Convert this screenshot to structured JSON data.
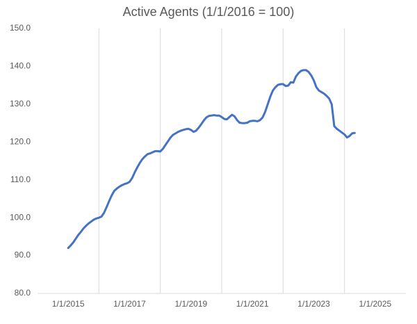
{
  "chart_data": {
    "type": "line",
    "title": "Active Agents (1/1/2016 = 100)",
    "x": [
      "1/1/2015",
      "2/1/2015",
      "3/1/2015",
      "4/1/2015",
      "5/1/2015",
      "6/1/2015",
      "7/1/2015",
      "8/1/2015",
      "9/1/2015",
      "10/1/2015",
      "11/1/2015",
      "12/1/2015",
      "1/1/2016",
      "2/1/2016",
      "3/1/2016",
      "4/1/2016",
      "5/1/2016",
      "6/1/2016",
      "7/1/2016",
      "8/1/2016",
      "9/1/2016",
      "10/1/2016",
      "11/1/2016",
      "12/1/2016",
      "1/1/2017",
      "2/1/2017",
      "3/1/2017",
      "4/1/2017",
      "5/1/2017",
      "6/1/2017",
      "7/1/2017",
      "8/1/2017",
      "9/1/2017",
      "10/1/2017",
      "11/1/2017",
      "12/1/2017",
      "1/1/2018",
      "2/1/2018",
      "3/1/2018",
      "4/1/2018",
      "5/1/2018",
      "6/1/2018",
      "7/1/2018",
      "8/1/2018",
      "9/1/2018",
      "10/1/2018",
      "11/1/2018",
      "12/1/2018",
      "1/1/2019",
      "2/1/2019",
      "3/1/2019",
      "4/1/2019",
      "5/1/2019",
      "6/1/2019",
      "7/1/2019",
      "8/1/2019",
      "9/1/2019",
      "10/1/2019",
      "11/1/2019",
      "12/1/2019",
      "1/1/2020",
      "2/1/2020",
      "3/1/2020",
      "4/1/2020",
      "5/1/2020",
      "6/1/2020",
      "7/1/2020",
      "8/1/2020",
      "9/1/2020",
      "10/1/2020",
      "11/1/2020",
      "12/1/2020",
      "1/1/2021",
      "2/1/2021",
      "3/1/2021",
      "4/1/2021",
      "5/1/2021",
      "6/1/2021",
      "7/1/2021",
      "8/1/2021",
      "9/1/2021",
      "10/1/2021",
      "11/1/2021",
      "12/1/2021",
      "1/1/2022",
      "2/1/2022",
      "3/1/2022",
      "4/1/2022",
      "5/1/2022",
      "6/1/2022",
      "7/1/2022",
      "8/1/2022",
      "9/1/2022",
      "10/1/2022",
      "11/1/2022",
      "12/1/2022",
      "1/1/2023",
      "2/1/2023",
      "3/1/2023",
      "4/1/2023",
      "5/1/2023",
      "6/1/2023",
      "7/1/2023",
      "8/1/2023",
      "9/1/2023",
      "10/1/2023",
      "11/1/2023",
      "12/1/2023",
      "1/1/2024",
      "2/1/2024",
      "3/1/2024",
      "4/1/2024",
      "5/1/2024"
    ],
    "values": [
      92.0,
      92.7,
      93.5,
      94.5,
      95.5,
      96.3,
      97.2,
      97.9,
      98.5,
      99.0,
      99.5,
      99.8,
      100.0,
      100.3,
      101.3,
      102.8,
      104.4,
      105.9,
      107.1,
      107.7,
      108.2,
      108.6,
      108.9,
      109.1,
      109.5,
      110.5,
      112.0,
      113.3,
      114.5,
      115.5,
      116.2,
      116.8,
      117.0,
      117.3,
      117.6,
      117.6,
      117.5,
      118.2,
      119.2,
      120.2,
      121.2,
      121.9,
      122.3,
      122.7,
      123.0,
      123.2,
      123.4,
      123.5,
      123.2,
      122.7,
      123.0,
      123.8,
      124.7,
      125.7,
      126.5,
      126.9,
      127.0,
      127.1,
      127.0,
      127.0,
      126.6,
      126.1,
      126.0,
      126.6,
      127.2,
      126.8,
      125.8,
      125.1,
      125.0,
      125.0,
      125.1,
      125.5,
      125.6,
      125.6,
      125.5,
      125.8,
      126.5,
      128.0,
      130.0,
      132.0,
      133.6,
      134.5,
      135.1,
      135.3,
      135.3,
      134.8,
      134.9,
      135.8,
      135.7,
      137.3,
      138.2,
      138.8,
      139.0,
      139.0,
      138.5,
      137.6,
      136.3,
      134.5,
      133.6,
      133.2,
      132.8,
      132.2,
      131.5,
      130.0,
      124.2,
      123.5,
      123.0,
      122.5,
      122.0,
      121.2,
      121.6,
      122.3,
      122.4
    ],
    "color": "#4472c4",
    "xlim": [
      "1/1/2014",
      "1/1/2026"
    ],
    "xticks": [
      "1/1/2015",
      "1/1/2017",
      "1/1/2019",
      "1/1/2021",
      "1/1/2023",
      "1/1/2025"
    ],
    "xgrid": [
      "1/1/2016",
      "1/1/2018",
      "1/1/2020",
      "1/1/2022",
      "1/1/2024"
    ],
    "ylim": [
      80,
      150
    ],
    "yticks": [
      {
        "value": 80,
        "label": "80.0"
      },
      {
        "value": 90,
        "label": "90.0"
      },
      {
        "value": 100,
        "label": "100.0"
      },
      {
        "value": 110,
        "label": "110.0"
      },
      {
        "value": 120,
        "label": "120.0"
      },
      {
        "value": 130,
        "label": "130.0"
      },
      {
        "value": 140,
        "label": "140.0"
      },
      {
        "value": 150,
        "label": "150.0"
      }
    ]
  }
}
